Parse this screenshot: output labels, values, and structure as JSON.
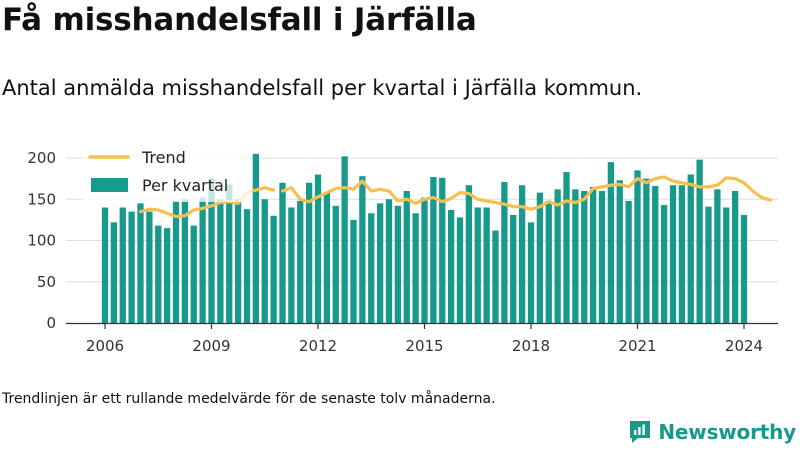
{
  "title": "Få misshandelsfall i Järfälla",
  "subtitle": "Antal anmälda misshandelsfall per kvartal i Järfälla kommun.",
  "footnote": "Trendlinjen är ett rullande medelvärde för de senaste tolv månaderna.",
  "brand": {
    "name": "Newsworthy",
    "icon": "newsworthy-logo-icon",
    "color": "#17998c"
  },
  "colors": {
    "bar": "#17998c",
    "trend": "#f7bf4f",
    "grid": "#dddddd",
    "axis": "#333333"
  },
  "chart_data": {
    "type": "bar",
    "title": "",
    "xlabel": "",
    "ylabel": "",
    "ylim": [
      0,
      200
    ],
    "yticks": [
      0,
      50,
      100,
      150,
      200
    ],
    "xticks": [
      {
        "label": "2006",
        "year": 2006
      },
      {
        "label": "2009",
        "year": 2009
      },
      {
        "label": "2012",
        "year": 2012
      },
      {
        "label": "2015",
        "year": 2015
      },
      {
        "label": "2018",
        "year": 2018
      },
      {
        "label": "2021",
        "year": 2021
      },
      {
        "label": "2024",
        "year": 2024
      }
    ],
    "legend": {
      "position": "top-left",
      "entries": [
        {
          "label": "Trend",
          "kind": "line"
        },
        {
          "label": "Per kvartal",
          "kind": "bar"
        }
      ]
    },
    "grid": true,
    "start": "2006-Q1",
    "series": [
      {
        "name": "Per kvartal",
        "kind": "bar",
        "values": [
          140,
          122,
          140,
          135,
          145,
          135,
          118,
          115,
          148,
          150,
          118,
          152,
          175,
          150,
          168,
          150,
          138,
          205,
          150,
          130,
          170,
          140,
          148,
          170,
          180,
          158,
          142,
          202,
          125,
          178,
          133,
          145,
          150,
          142,
          160,
          133,
          152,
          177,
          176,
          137,
          128,
          167,
          140,
          140,
          112,
          171,
          131,
          167,
          122,
          158,
          148,
          162,
          183,
          162,
          160,
          165,
          160,
          195,
          173,
          148,
          185,
          175,
          166,
          143,
          167,
          167,
          180,
          198,
          141,
          162,
          140,
          160,
          131
        ]
      },
      {
        "name": "Trend",
        "kind": "line",
        "start_index": 4,
        "values": [
          135,
          138,
          137,
          133,
          129,
          130,
          137,
          139,
          142,
          146,
          147,
          145,
          158,
          161,
          164,
          161,
          160,
          164,
          150,
          147,
          153,
          158,
          163,
          164,
          162,
          172,
          160,
          162,
          160,
          148,
          150,
          145,
          150,
          152,
          147,
          151,
          158,
          157,
          150,
          148,
          146,
          144,
          141,
          141,
          138,
          141,
          147,
          143,
          148,
          146,
          150,
          163,
          165,
          167,
          168,
          165,
          175,
          170,
          175,
          177,
          172,
          170,
          168,
          165,
          165,
          167,
          176,
          175,
          170,
          160,
          152,
          149
        ]
      }
    ]
  }
}
